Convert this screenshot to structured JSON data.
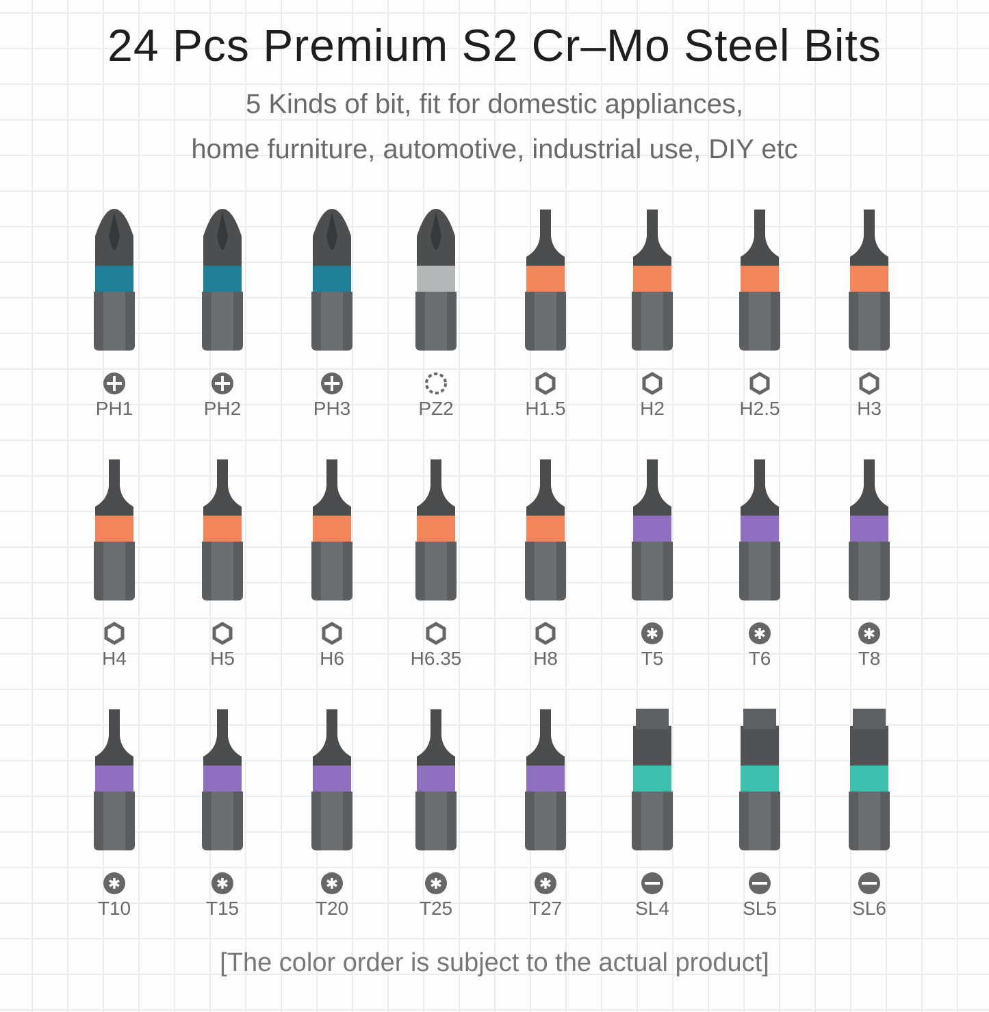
{
  "title": "24 Pcs Premium S2 Cr–Mo Steel Bits",
  "subtitle_lines": [
    "5 Kinds of bit, fit for domestic appliances,",
    "home furniture, automotive, industrial use, DIY etc"
  ],
  "footer_note": "[The color order is subject to the actual product]",
  "band_colors": {
    "phillips": "#1e7f96",
    "pozidriv": "#b5b8b8",
    "hex": "#f2865a",
    "torx": "#8f6fbf",
    "slotted": "#3fbfae"
  },
  "bits": [
    {
      "label": "PH1",
      "type": "phillips",
      "icon": "phillips-icon"
    },
    {
      "label": "PH2",
      "type": "phillips",
      "icon": "phillips-icon"
    },
    {
      "label": "PH3",
      "type": "phillips",
      "icon": "phillips-icon"
    },
    {
      "label": "PZ2",
      "type": "pozidriv",
      "icon": "pozidriv-icon"
    },
    {
      "label": "H1.5",
      "type": "hex",
      "icon": "hex-icon"
    },
    {
      "label": "H2",
      "type": "hex",
      "icon": "hex-icon"
    },
    {
      "label": "H2.5",
      "type": "hex",
      "icon": "hex-icon"
    },
    {
      "label": "H3",
      "type": "hex",
      "icon": "hex-icon"
    },
    {
      "label": "H4",
      "type": "hex",
      "icon": "hex-icon"
    },
    {
      "label": "H5",
      "type": "hex",
      "icon": "hex-icon"
    },
    {
      "label": "H6",
      "type": "hex",
      "icon": "hex-icon"
    },
    {
      "label": "H6.35",
      "type": "hex",
      "icon": "hex-icon"
    },
    {
      "label": "H8",
      "type": "hex",
      "icon": "hex-icon"
    },
    {
      "label": "T5",
      "type": "torx",
      "icon": "torx-icon"
    },
    {
      "label": "T6",
      "type": "torx",
      "icon": "torx-icon"
    },
    {
      "label": "T8",
      "type": "torx",
      "icon": "torx-icon"
    },
    {
      "label": "T10",
      "type": "torx",
      "icon": "torx-icon"
    },
    {
      "label": "T15",
      "type": "torx",
      "icon": "torx-icon"
    },
    {
      "label": "T20",
      "type": "torx",
      "icon": "torx-icon"
    },
    {
      "label": "T25",
      "type": "torx",
      "icon": "torx-icon"
    },
    {
      "label": "T27",
      "type": "torx",
      "icon": "torx-icon"
    },
    {
      "label": "SL4",
      "type": "slotted",
      "icon": "slotted-icon"
    },
    {
      "label": "SL5",
      "type": "slotted",
      "icon": "slotted-icon"
    },
    {
      "label": "SL6",
      "type": "slotted",
      "icon": "slotted-icon"
    }
  ]
}
